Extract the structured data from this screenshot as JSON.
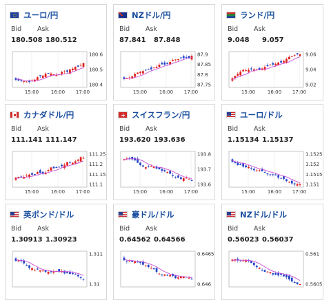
{
  "colors": {
    "up": "#e0201b",
    "down": "#2446c8",
    "ma": "#c94bd6",
    "title": "#1a4fa0"
  },
  "labels": {
    "bid": "Bid",
    "ask": "Ask"
  },
  "cards": [
    {
      "pair": "ユーロ/円",
      "flag": "eu",
      "bid": "180.508",
      "ask": "180.512",
      "yticks": [
        "180.6",
        "180.5",
        "180.4"
      ],
      "xticks": [
        "15:00",
        "16:00",
        "17:00"
      ],
      "trend": "up"
    },
    {
      "pair": "NZドル/円",
      "flag": "nz",
      "bid": "87.841",
      "ask": "87.848",
      "yticks": [
        "87.9",
        "87.85",
        "87.8",
        "87.75"
      ],
      "xticks": [
        "15:00",
        "16:00",
        "17:00"
      ],
      "trend": "up"
    },
    {
      "pair": "ランド/円",
      "flag": "za",
      "bid": "9.048",
      "ask": "9.057",
      "yticks": [
        "9.06",
        "9.04",
        "9.02"
      ],
      "xticks": [
        "15:00",
        "16:00",
        "17:00"
      ],
      "trend": "up"
    },
    {
      "pair": "カナダドル/円",
      "flag": "ca",
      "bid": "111.141",
      "ask": "111.147",
      "yticks": [
        "111.25",
        "111.2",
        "111.15",
        "111.1"
      ],
      "xticks": [
        "15:00",
        "16:00",
        "17:00"
      ],
      "trend": "up"
    },
    {
      "pair": "スイスフラン/円",
      "flag": "ch",
      "bid": "193.620",
      "ask": "193.636",
      "yticks": [
        "193.8",
        "193.7",
        "193.6"
      ],
      "xticks": [
        "15:00",
        "16:00",
        "17:00"
      ],
      "trend": "down"
    },
    {
      "pair": "ユーロ/ドル",
      "flag": "us",
      "bid": "1.15134",
      "ask": "1.15137",
      "yticks": [
        "1.1525",
        "1.152",
        "1.1515",
        "1.151"
      ],
      "xticks": [
        "15:00",
        "16:00",
        "17:00"
      ],
      "trend": "down"
    },
    {
      "pair": "英ポンド/ドル",
      "flag": "us",
      "bid": "1.30913",
      "ask": "1.30923",
      "yticks": [
        "1.311",
        "1.31"
      ],
      "xticks": [],
      "trend": "down"
    },
    {
      "pair": "豪ドル/ドル",
      "flag": "us",
      "bid": "0.64562",
      "ask": "0.64566",
      "yticks": [
        "0.6465",
        "0.646"
      ],
      "xticks": [],
      "trend": "down"
    },
    {
      "pair": "NZドル/ドル",
      "flag": "us",
      "bid": "0.56023",
      "ask": "0.56037",
      "yticks": [
        "0.561",
        "0.5605"
      ],
      "xticks": [],
      "trend": "down"
    }
  ]
}
